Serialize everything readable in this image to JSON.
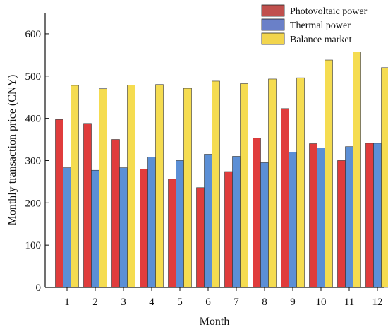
{
  "chart_data": {
    "type": "bar",
    "title": "",
    "xlabel": "Month",
    "ylabel": "Monthly transaction  price (CNY)",
    "categories": [
      "1",
      "2",
      "3",
      "4",
      "5",
      "6",
      "7",
      "8",
      "9",
      "10",
      "11",
      "12"
    ],
    "ylim": [
      0,
      650
    ],
    "yticks": [
      0,
      100,
      200,
      300,
      400,
      500,
      600
    ],
    "grid": false,
    "legend_position": "top-right",
    "series": [
      {
        "name": "Photovoltaic power",
        "color": "#e03c3c",
        "legend_color": "#c0504d",
        "values": [
          397,
          388,
          350,
          280,
          256,
          236,
          274,
          353,
          423,
          340,
          300,
          341
        ]
      },
      {
        "name": "Thermal power",
        "color": "#5b8fd6",
        "legend_color": "#6a80c8",
        "values": [
          283,
          277,
          283,
          308,
          300,
          315,
          310,
          295,
          320,
          330,
          333,
          341
        ]
      },
      {
        "name": "Balance market",
        "color": "#f5dc50",
        "legend_color": "#f2d54d",
        "values": [
          478,
          470,
          479,
          480,
          471,
          488,
          482,
          493,
          496,
          538,
          557,
          520
        ]
      }
    ]
  }
}
